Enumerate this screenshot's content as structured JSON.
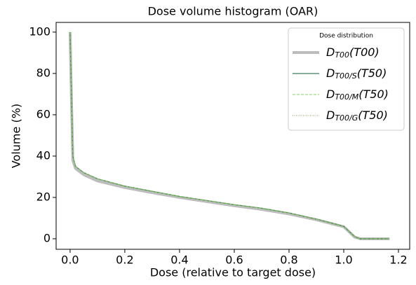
{
  "chart_data": {
    "type": "line",
    "title": "Dose volume histogram (OAR)",
    "xlabel": "Dose (relative to target dose)",
    "ylabel": "Volume (%)",
    "legend_title": "Dose distribution",
    "legend": "upper right",
    "x": [
      0,
      0.005,
      0.01,
      0.02,
      0.05,
      0.1,
      0.2,
      0.3,
      0.4,
      0.5,
      0.6,
      0.7,
      0.8,
      0.9,
      0.95,
      1.0,
      1.02,
      1.04,
      1.06,
      1.08,
      1.1,
      1.167
    ],
    "series": [
      {
        "name_parts": [
          "D",
          "T00",
          "(T00)"
        ],
        "color": "#bdbdbd",
        "width": 4,
        "dash": "none",
        "values": [
          100,
          68,
          38,
          34,
          31,
          28,
          24.8,
          22.3,
          20,
          18,
          16,
          14.2,
          12,
          9.2,
          7.5,
          5.8,
          3.3,
          0.8,
          0,
          0,
          0,
          0
        ]
      },
      {
        "name_parts": [
          "D",
          "T00/S",
          "(T50)"
        ],
        "color": "#3a7d5c",
        "width": 1.3,
        "dash": "none",
        "values": [
          100,
          70,
          40,
          35,
          32,
          29,
          25.5,
          23,
          20.5,
          18.5,
          16.5,
          14.8,
          12.5,
          9.5,
          7.8,
          6,
          3.5,
          1,
          0,
          0,
          0,
          0
        ]
      },
      {
        "name_parts": [
          "D",
          "T00/M",
          "(T50)"
        ],
        "color": "#7fd35f",
        "width": 1.1,
        "dash": "4 2",
        "values": [
          100,
          70,
          40,
          35,
          32,
          29,
          25.5,
          23,
          20.5,
          18.5,
          16.5,
          14.8,
          12.5,
          9.5,
          7.8,
          6,
          3.5,
          1,
          0,
          0,
          0,
          0
        ]
      },
      {
        "name_parts": [
          "D",
          "T00/G",
          "(T50)"
        ],
        "color": "#8c9a5a",
        "width": 1,
        "dash": "1 1.5",
        "values": [
          100,
          70,
          40,
          35,
          32,
          29,
          25.5,
          23,
          20.5,
          18.5,
          16.5,
          14.8,
          12.5,
          9.5,
          7.8,
          6,
          3.5,
          1,
          0,
          0,
          0,
          0
        ]
      }
    ],
    "xlim": [
      -0.051,
      1.241
    ],
    "ylim": [
      -5.1,
      104.7
    ],
    "xticks": [
      {
        "value": 0,
        "label": "0.0"
      },
      0.2,
      0.4,
      0.6,
      0.8,
      {
        "value": 1,
        "label": "1.0"
      },
      1.2
    ],
    "yticks": [
      0,
      20,
      40,
      60,
      80,
      100
    ]
  }
}
